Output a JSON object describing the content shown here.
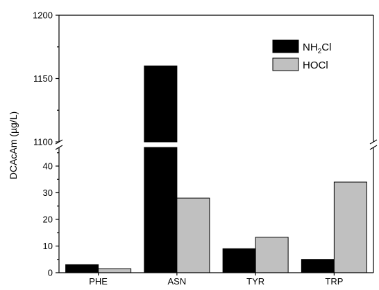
{
  "chart_data": {
    "type": "bar",
    "title": "",
    "ylabel": "DCAcAm (µg/L)",
    "xlabel": "",
    "categories": [
      "PHE",
      "ASN",
      "TYR",
      "TRP"
    ],
    "series": [
      {
        "name": "NH₂Cl",
        "label_main": "NH",
        "label_sub": "2",
        "label_tail": "Cl",
        "color": "#000000",
        "values": [
          3,
          1160,
          9,
          5
        ]
      },
      {
        "name": "HOCl",
        "label_main": "HOCl",
        "label_sub": "",
        "label_tail": "",
        "color": "#c0c0c0",
        "values": [
          1.5,
          28,
          13.3,
          34
        ]
      }
    ],
    "y_axis_break": true,
    "y_lower_range": [
      0,
      47
    ],
    "y_upper_range": [
      1100,
      1200
    ],
    "y_lower_ticks": [
      "0",
      "10",
      "20",
      "30",
      "40"
    ],
    "y_upper_ticks": [
      "1100",
      "1150",
      "1200"
    ],
    "legend_position": "top-right",
    "grid": false
  }
}
